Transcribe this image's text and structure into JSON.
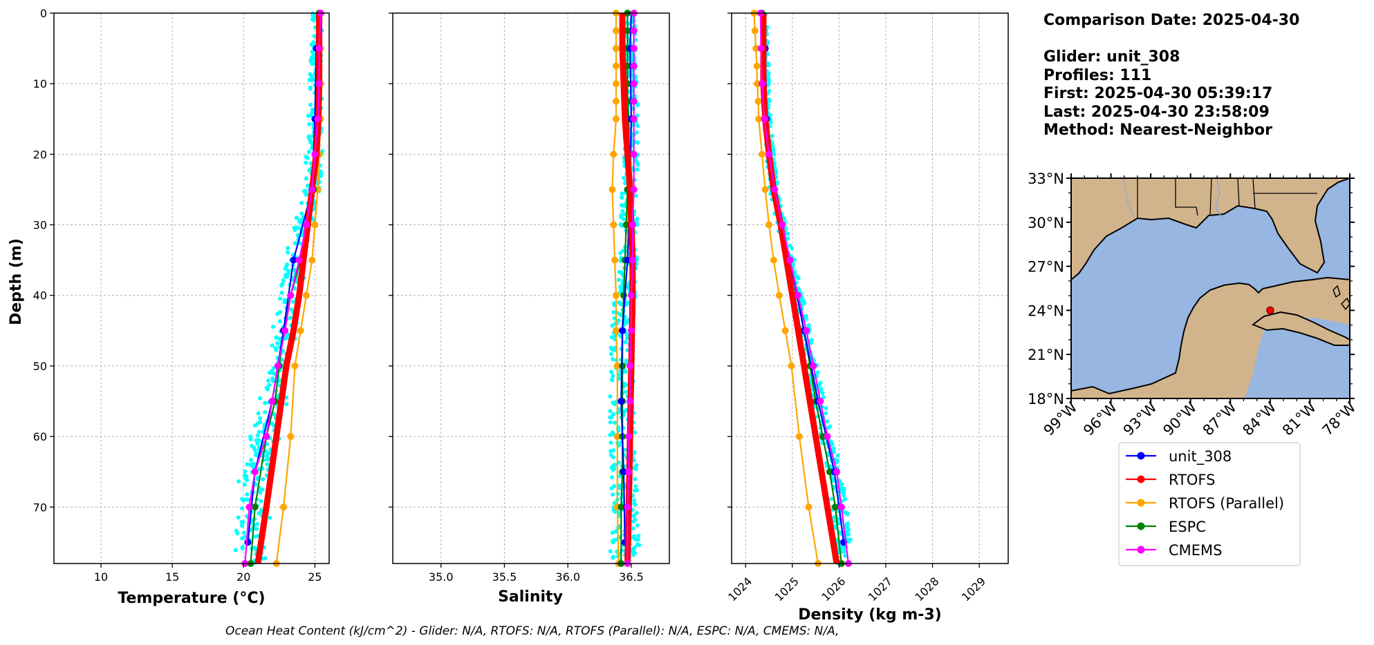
{
  "info": {
    "lines": [
      "Comparison Date: 2025-04-30",
      "",
      "Glider: unit_308",
      "Profiles: 111",
      "First: 2025-04-30 05:39:17",
      "Last: 2025-04-30 23:58:09",
      "Method: Nearest-Neighbor"
    ]
  },
  "footer": "Ocean Heat Content (kJ/cm^2) - Glider: N/A,  RTOFS: N/A,  RTOFS (Parallel): N/A,  ESPC: N/A,  CMEMS: N/A,",
  "colors": {
    "unit_308": "#0000ff",
    "RTOFS": "#ff0000",
    "RTOFS (Parallel)": "#ffa500",
    "ESPC": "#008000",
    "CMEMS": "#ff00ff",
    "glider_scatter": "#00ffff",
    "ocean": "#97b6e1",
    "land": "#d2b48c"
  },
  "legend": {
    "entries": [
      "unit_308",
      "RTOFS",
      "RTOFS (Parallel)",
      "ESPC",
      "CMEMS"
    ]
  },
  "chart_data": [
    {
      "type": "line",
      "xlabel": "Temperature (°C)",
      "ylabel": "Depth (m)",
      "xlim": [
        6.7,
        26.0
      ],
      "ylim": [
        78,
        0
      ],
      "xticks": [
        10,
        15,
        20,
        25
      ],
      "yticks": [
        0,
        10,
        20,
        30,
        40,
        50,
        60,
        70
      ],
      "grid": true,
      "series": [
        {
          "name": "unit_308",
          "depth": [
            0,
            5,
            15,
            25,
            35,
            45,
            55,
            65,
            75
          ],
          "values": [
            25.2,
            25.1,
            25.0,
            24.8,
            23.5,
            22.8,
            22.0,
            20.8,
            20.3
          ]
        },
        {
          "name": "RTOFS",
          "depth": [
            0,
            5,
            10,
            15,
            20,
            25,
            30,
            35,
            40,
            45,
            50,
            60,
            70,
            78
          ],
          "values": [
            25.3,
            25.3,
            25.3,
            25.25,
            25.1,
            24.8,
            24.5,
            24.2,
            23.9,
            23.5,
            23.0,
            22.3,
            21.6,
            21.0
          ]
        },
        {
          "name": "RTOFS (Parallel)",
          "depth": [
            0,
            5,
            10,
            15,
            20,
            25,
            30,
            35,
            40,
            45,
            50,
            60,
            70,
            78
          ],
          "values": [
            25.4,
            25.4,
            25.4,
            25.4,
            25.3,
            25.2,
            25.0,
            24.8,
            24.4,
            24.0,
            23.6,
            23.3,
            22.8,
            22.3
          ]
        },
        {
          "name": "ESPC",
          "depth": [
            0,
            5,
            10,
            15,
            20,
            25,
            30,
            35,
            40,
            45,
            50,
            55,
            60,
            70,
            78
          ],
          "values": [
            25.3,
            25.3,
            25.3,
            25.2,
            25.1,
            24.9,
            24.5,
            24.0,
            23.3,
            22.8,
            22.5,
            22.2,
            21.6,
            20.8,
            20.5
          ]
        },
        {
          "name": "CMEMS",
          "depth": [
            0,
            5,
            10,
            15,
            20,
            25,
            30,
            35,
            40,
            45,
            50,
            55,
            60,
            65,
            70,
            78
          ],
          "values": [
            25.4,
            25.3,
            25.3,
            25.2,
            25.0,
            24.8,
            24.4,
            23.9,
            23.3,
            22.9,
            22.4,
            22.0,
            21.6,
            20.8,
            20.4,
            20.1
          ]
        }
      ]
    },
    {
      "type": "line",
      "xlabel": "Salinity",
      "ylim": [
        78,
        0
      ],
      "xlim": [
        34.62,
        36.8
      ],
      "xticks": [
        35.0,
        35.5,
        36.0,
        36.5
      ],
      "grid": true,
      "series": [
        {
          "name": "unit_308",
          "depth": [
            0,
            5,
            15,
            25,
            35,
            45,
            55,
            65,
            75
          ],
          "values": [
            36.5,
            36.49,
            36.5,
            36.49,
            36.47,
            36.43,
            36.42,
            36.44,
            36.45
          ]
        },
        {
          "name": "RTOFS",
          "depth": [
            0,
            5,
            10,
            15,
            20,
            25,
            30,
            35,
            40,
            50,
            60,
            70,
            78
          ],
          "values": [
            36.43,
            36.43,
            36.44,
            36.45,
            36.47,
            36.49,
            36.5,
            36.51,
            36.51,
            36.5,
            36.49,
            36.48,
            36.47
          ]
        },
        {
          "name": "RTOFS (Parallel)",
          "depth": [
            0,
            2.5,
            5,
            7.5,
            10,
            12.5,
            15,
            20,
            25,
            30,
            35,
            40,
            45,
            50,
            60,
            70,
            78
          ],
          "values": [
            36.38,
            36.38,
            36.38,
            36.38,
            36.38,
            36.38,
            36.38,
            36.36,
            36.35,
            36.36,
            36.37,
            36.38,
            36.38,
            36.39,
            36.39,
            36.39,
            36.4
          ]
        },
        {
          "name": "ESPC",
          "depth": [
            0,
            2.5,
            5,
            7.5,
            10,
            12.5,
            15,
            20,
            25,
            30,
            35,
            40,
            45,
            50,
            55,
            60,
            65,
            70,
            78
          ],
          "values": [
            36.47,
            36.47,
            36.47,
            36.47,
            36.47,
            36.47,
            36.48,
            36.48,
            36.47,
            36.46,
            36.45,
            36.44,
            36.43,
            36.43,
            36.43,
            36.43,
            36.43,
            36.42,
            36.42
          ]
        },
        {
          "name": "CMEMS",
          "depth": [
            0,
            2.5,
            5,
            7.5,
            10,
            12.5,
            15,
            20,
            25,
            30,
            35,
            40,
            45,
            50,
            55,
            60,
            65,
            70,
            78
          ],
          "values": [
            36.52,
            36.52,
            36.52,
            36.52,
            36.52,
            36.52,
            36.52,
            36.52,
            36.52,
            36.51,
            36.51,
            36.5,
            36.5,
            36.49,
            36.49,
            36.48,
            36.48,
            36.47,
            36.47
          ]
        }
      ]
    },
    {
      "type": "line",
      "xlabel": "Density (kg m-3)",
      "ylim": [
        78,
        0
      ],
      "xlim": [
        1023.7,
        1029.62
      ],
      "xticks": [
        1024,
        1025,
        1026,
        1027,
        1028,
        1029
      ],
      "grid": true,
      "series": [
        {
          "name": "unit_308",
          "depth": [
            0,
            5,
            15,
            25,
            35,
            45,
            55,
            65,
            75
          ],
          "values": [
            1024.4,
            1024.42,
            1024.45,
            1024.6,
            1024.95,
            1025.25,
            1025.55,
            1025.9,
            1026.1
          ]
        },
        {
          "name": "RTOFS",
          "depth": [
            0,
            5,
            10,
            15,
            20,
            25,
            30,
            40,
            50,
            60,
            70,
            78
          ],
          "values": [
            1024.38,
            1024.38,
            1024.38,
            1024.42,
            1024.5,
            1024.6,
            1024.75,
            1025.0,
            1025.25,
            1025.5,
            1025.75,
            1025.95
          ]
        },
        {
          "name": "RTOFS (Parallel)",
          "depth": [
            0,
            2.5,
            5,
            7.5,
            10,
            12.5,
            15,
            20,
            25,
            30,
            35,
            40,
            45,
            50,
            60,
            70,
            78
          ],
          "values": [
            1024.18,
            1024.2,
            1024.22,
            1024.24,
            1024.25,
            1024.27,
            1024.28,
            1024.35,
            1024.42,
            1024.5,
            1024.6,
            1024.72,
            1024.85,
            1024.98,
            1025.15,
            1025.35,
            1025.55
          ]
        },
        {
          "name": "ESPC",
          "depth": [
            0,
            5,
            10,
            15,
            20,
            25,
            30,
            35,
            40,
            45,
            50,
            55,
            60,
            65,
            70,
            78
          ],
          "values": [
            1024.35,
            1024.35,
            1024.36,
            1024.42,
            1024.5,
            1024.62,
            1024.78,
            1024.95,
            1025.1,
            1025.25,
            1025.38,
            1025.5,
            1025.65,
            1025.8,
            1025.92,
            1026.05
          ]
        },
        {
          "name": "CMEMS",
          "depth": [
            0,
            5,
            10,
            15,
            20,
            25,
            30,
            35,
            40,
            45,
            50,
            55,
            60,
            65,
            70,
            78
          ],
          "values": [
            1024.32,
            1024.33,
            1024.35,
            1024.4,
            1024.5,
            1024.62,
            1024.78,
            1024.95,
            1025.12,
            1025.3,
            1025.45,
            1025.6,
            1025.75,
            1025.95,
            1026.05,
            1026.2
          ]
        }
      ]
    },
    {
      "type": "map",
      "lat_ticks": [
        "33°N",
        "30°N",
        "27°N",
        "24°N",
        "21°N",
        "18°N"
      ],
      "lon_ticks": [
        "99°W",
        "96°W",
        "93°W",
        "90°W",
        "87°W",
        "84°W",
        "81°W",
        "78°W"
      ],
      "extent": {
        "lon": [
          -99,
          -78
        ],
        "lat": [
          18,
          33
        ]
      },
      "glider_position": {
        "lon": -84.0,
        "lat": 24.0
      }
    }
  ]
}
